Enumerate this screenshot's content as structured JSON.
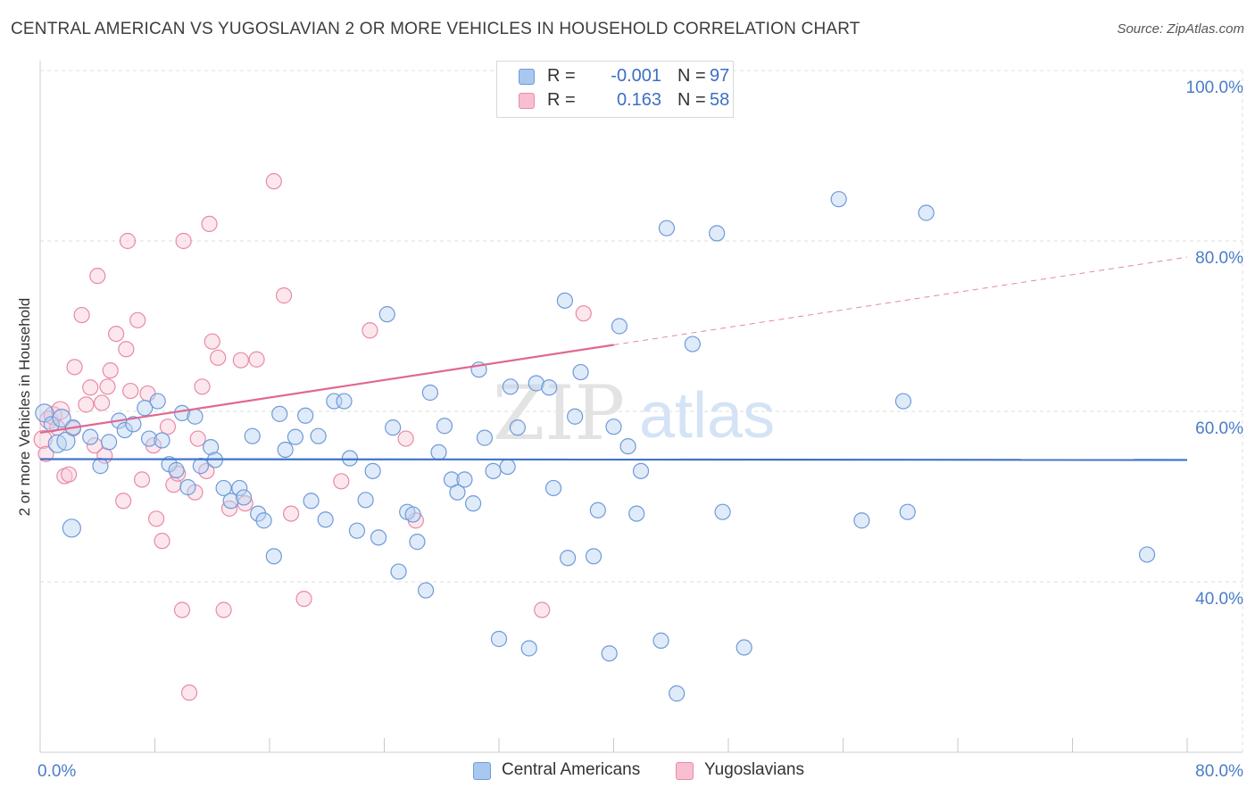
{
  "title": "CENTRAL AMERICAN VS YUGOSLAVIAN 2 OR MORE VEHICLES IN HOUSEHOLD CORRELATION CHART",
  "source": "Source: ZipAtlas.com",
  "watermark": {
    "zip": "ZIP",
    "atlas": "atlas"
  },
  "legend": {
    "rows": [
      {
        "r_label": "R =",
        "r_value": "-0.001",
        "n_label": "N =",
        "n_value": "97",
        "color": "#a8c8f0",
        "border": "#6f9ad8"
      },
      {
        "r_label": "R =",
        "r_value": "0.163",
        "n_label": "N =",
        "n_value": "58",
        "color": "#f8bfd0",
        "border": "#e88aa8"
      }
    ]
  },
  "bottom_legend": {
    "central": "Central Americans",
    "yugoslav": "Yugoslavians"
  },
  "chart_data": {
    "type": "scatter",
    "title": "CENTRAL AMERICAN VS YUGOSLAVIAN 2 OR MORE VEHICLES IN HOUSEHOLD CORRELATION CHART",
    "xlabel": "",
    "ylabel": "2 or more Vehicles in Household",
    "xlim": [
      0,
      80
    ],
    "ylim": [
      20,
      102
    ],
    "x_tick_labels": [
      "0.0%",
      "80.0%"
    ],
    "y_tick_labels": [
      "40.0%",
      "60.0%",
      "80.0%",
      "100.0%"
    ],
    "y_ticks": [
      40,
      60,
      80,
      100
    ],
    "grid": true,
    "legend_position": "top-center",
    "colors": {
      "central": "#6f9ad8",
      "central_fill": "#b8d2f2",
      "yugoslav": "#e88aa8",
      "yugoslav_fill": "#f9c9d7",
      "central_line": "#3f72c8",
      "yugoslav_line": "#e06890"
    },
    "series": [
      {
        "name": "Central Americans",
        "trend": {
          "x0": 0,
          "y0": 54.4,
          "x1": 80,
          "y1": 54.3
        },
        "points": [
          [
            0.3,
            59.8
          ],
          [
            0.8,
            58.5
          ],
          [
            1.2,
            56.2
          ],
          [
            1.5,
            59.2
          ],
          [
            1.8,
            56.5
          ],
          [
            2.3,
            58.1
          ],
          [
            2.2,
            46.3
          ],
          [
            3.5,
            57.0
          ],
          [
            4.2,
            53.6
          ],
          [
            4.8,
            56.4
          ],
          [
            5.5,
            58.9
          ],
          [
            5.9,
            57.8
          ],
          [
            6.5,
            58.5
          ],
          [
            7.3,
            60.4
          ],
          [
            7.6,
            56.8
          ],
          [
            8.2,
            61.2
          ],
          [
            8.5,
            56.6
          ],
          [
            9.0,
            53.8
          ],
          [
            9.5,
            53.1
          ],
          [
            9.9,
            59.8
          ],
          [
            10.3,
            51.1
          ],
          [
            10.8,
            59.4
          ],
          [
            11.2,
            53.6
          ],
          [
            11.9,
            55.8
          ],
          [
            12.2,
            54.3
          ],
          [
            12.8,
            51.0
          ],
          [
            13.3,
            49.5
          ],
          [
            13.9,
            51.0
          ],
          [
            14.2,
            49.9
          ],
          [
            14.8,
            57.1
          ],
          [
            15.2,
            48.0
          ],
          [
            15.6,
            47.2
          ],
          [
            16.3,
            43.0
          ],
          [
            16.7,
            59.7
          ],
          [
            17.1,
            55.5
          ],
          [
            17.8,
            57.0
          ],
          [
            18.5,
            59.5
          ],
          [
            18.9,
            49.5
          ],
          [
            19.4,
            57.1
          ],
          [
            19.9,
            47.3
          ],
          [
            20.5,
            61.2
          ],
          [
            21.2,
            61.2
          ],
          [
            21.6,
            54.5
          ],
          [
            22.1,
            46.0
          ],
          [
            22.7,
            49.6
          ],
          [
            23.2,
            53.0
          ],
          [
            23.6,
            45.2
          ],
          [
            24.2,
            71.4
          ],
          [
            24.6,
            58.1
          ],
          [
            25.0,
            41.2
          ],
          [
            25.6,
            48.2
          ],
          [
            26.0,
            47.9
          ],
          [
            26.3,
            44.7
          ],
          [
            26.9,
            39.0
          ],
          [
            27.2,
            62.2
          ],
          [
            27.8,
            55.2
          ],
          [
            28.2,
            58.3
          ],
          [
            28.7,
            52.0
          ],
          [
            29.1,
            50.5
          ],
          [
            29.6,
            52.0
          ],
          [
            30.2,
            49.2
          ],
          [
            30.6,
            64.9
          ],
          [
            31.0,
            56.9
          ],
          [
            31.6,
            53.0
          ],
          [
            32.0,
            33.3
          ],
          [
            32.6,
            53.5
          ],
          [
            32.8,
            62.9
          ],
          [
            33.3,
            58.1
          ],
          [
            34.1,
            32.2
          ],
          [
            34.6,
            63.3
          ],
          [
            35.5,
            62.8
          ],
          [
            35.8,
            51.0
          ],
          [
            36.6,
            73.0
          ],
          [
            36.8,
            42.8
          ],
          [
            37.3,
            59.4
          ],
          [
            37.7,
            64.6
          ],
          [
            38.6,
            43.0
          ],
          [
            38.9,
            48.4
          ],
          [
            39.7,
            31.6
          ],
          [
            40.0,
            58.2
          ],
          [
            40.4,
            70.0
          ],
          [
            41.0,
            55.9
          ],
          [
            41.6,
            48.0
          ],
          [
            41.9,
            53.0
          ],
          [
            43.3,
            33.1
          ],
          [
            43.7,
            81.5
          ],
          [
            44.4,
            26.9
          ],
          [
            45.5,
            67.9
          ],
          [
            47.2,
            80.9
          ],
          [
            47.6,
            48.2
          ],
          [
            49.1,
            32.3
          ],
          [
            55.7,
            84.9
          ],
          [
            57.3,
            47.2
          ],
          [
            60.2,
            61.2
          ],
          [
            60.5,
            48.2
          ],
          [
            61.8,
            83.3
          ],
          [
            77.2,
            43.2
          ]
        ]
      },
      {
        "name": "Yugoslavians",
        "trend": {
          "x0": 0,
          "y0": 57.5,
          "x1": 40,
          "y1": 67.8,
          "dash_x1": 80,
          "dash_y1": 78.1
        },
        "points": [
          [
            0.2,
            56.7
          ],
          [
            0.4,
            55.0
          ],
          [
            0.6,
            59.0
          ],
          [
            0.9,
            59.5
          ],
          [
            1.2,
            58.1
          ],
          [
            1.4,
            60.1
          ],
          [
            1.7,
            52.4
          ],
          [
            2.0,
            52.6
          ],
          [
            2.3,
            58.0
          ],
          [
            2.4,
            65.2
          ],
          [
            2.9,
            71.3
          ],
          [
            3.2,
            60.8
          ],
          [
            3.5,
            62.8
          ],
          [
            3.8,
            56.0
          ],
          [
            4.0,
            75.9
          ],
          [
            4.3,
            61.0
          ],
          [
            4.5,
            54.8
          ],
          [
            4.7,
            62.9
          ],
          [
            4.9,
            64.8
          ],
          [
            5.3,
            69.1
          ],
          [
            5.8,
            49.5
          ],
          [
            6.0,
            67.3
          ],
          [
            6.1,
            80.0
          ],
          [
            6.3,
            62.4
          ],
          [
            6.8,
            70.7
          ],
          [
            7.1,
            52.0
          ],
          [
            7.5,
            62.1
          ],
          [
            7.9,
            56.0
          ],
          [
            8.1,
            47.4
          ],
          [
            8.5,
            44.8
          ],
          [
            8.9,
            58.2
          ],
          [
            9.3,
            51.4
          ],
          [
            9.6,
            52.7
          ],
          [
            9.9,
            36.7
          ],
          [
            10.0,
            80.0
          ],
          [
            10.4,
            27.0
          ],
          [
            10.8,
            50.5
          ],
          [
            11.0,
            56.8
          ],
          [
            11.3,
            62.9
          ],
          [
            11.6,
            53.0
          ],
          [
            11.8,
            82.0
          ],
          [
            12.0,
            68.2
          ],
          [
            12.4,
            66.3
          ],
          [
            12.8,
            36.7
          ],
          [
            13.2,
            48.6
          ],
          [
            14.0,
            66.0
          ],
          [
            14.3,
            49.2
          ],
          [
            15.1,
            66.1
          ],
          [
            16.3,
            87.0
          ],
          [
            17.0,
            73.6
          ],
          [
            17.5,
            48.0
          ],
          [
            18.4,
            38.0
          ],
          [
            21.0,
            51.8
          ],
          [
            23.0,
            69.5
          ],
          [
            25.5,
            56.8
          ],
          [
            26.2,
            47.2
          ],
          [
            35.0,
            36.7
          ],
          [
            37.9,
            71.5
          ]
        ]
      }
    ]
  }
}
